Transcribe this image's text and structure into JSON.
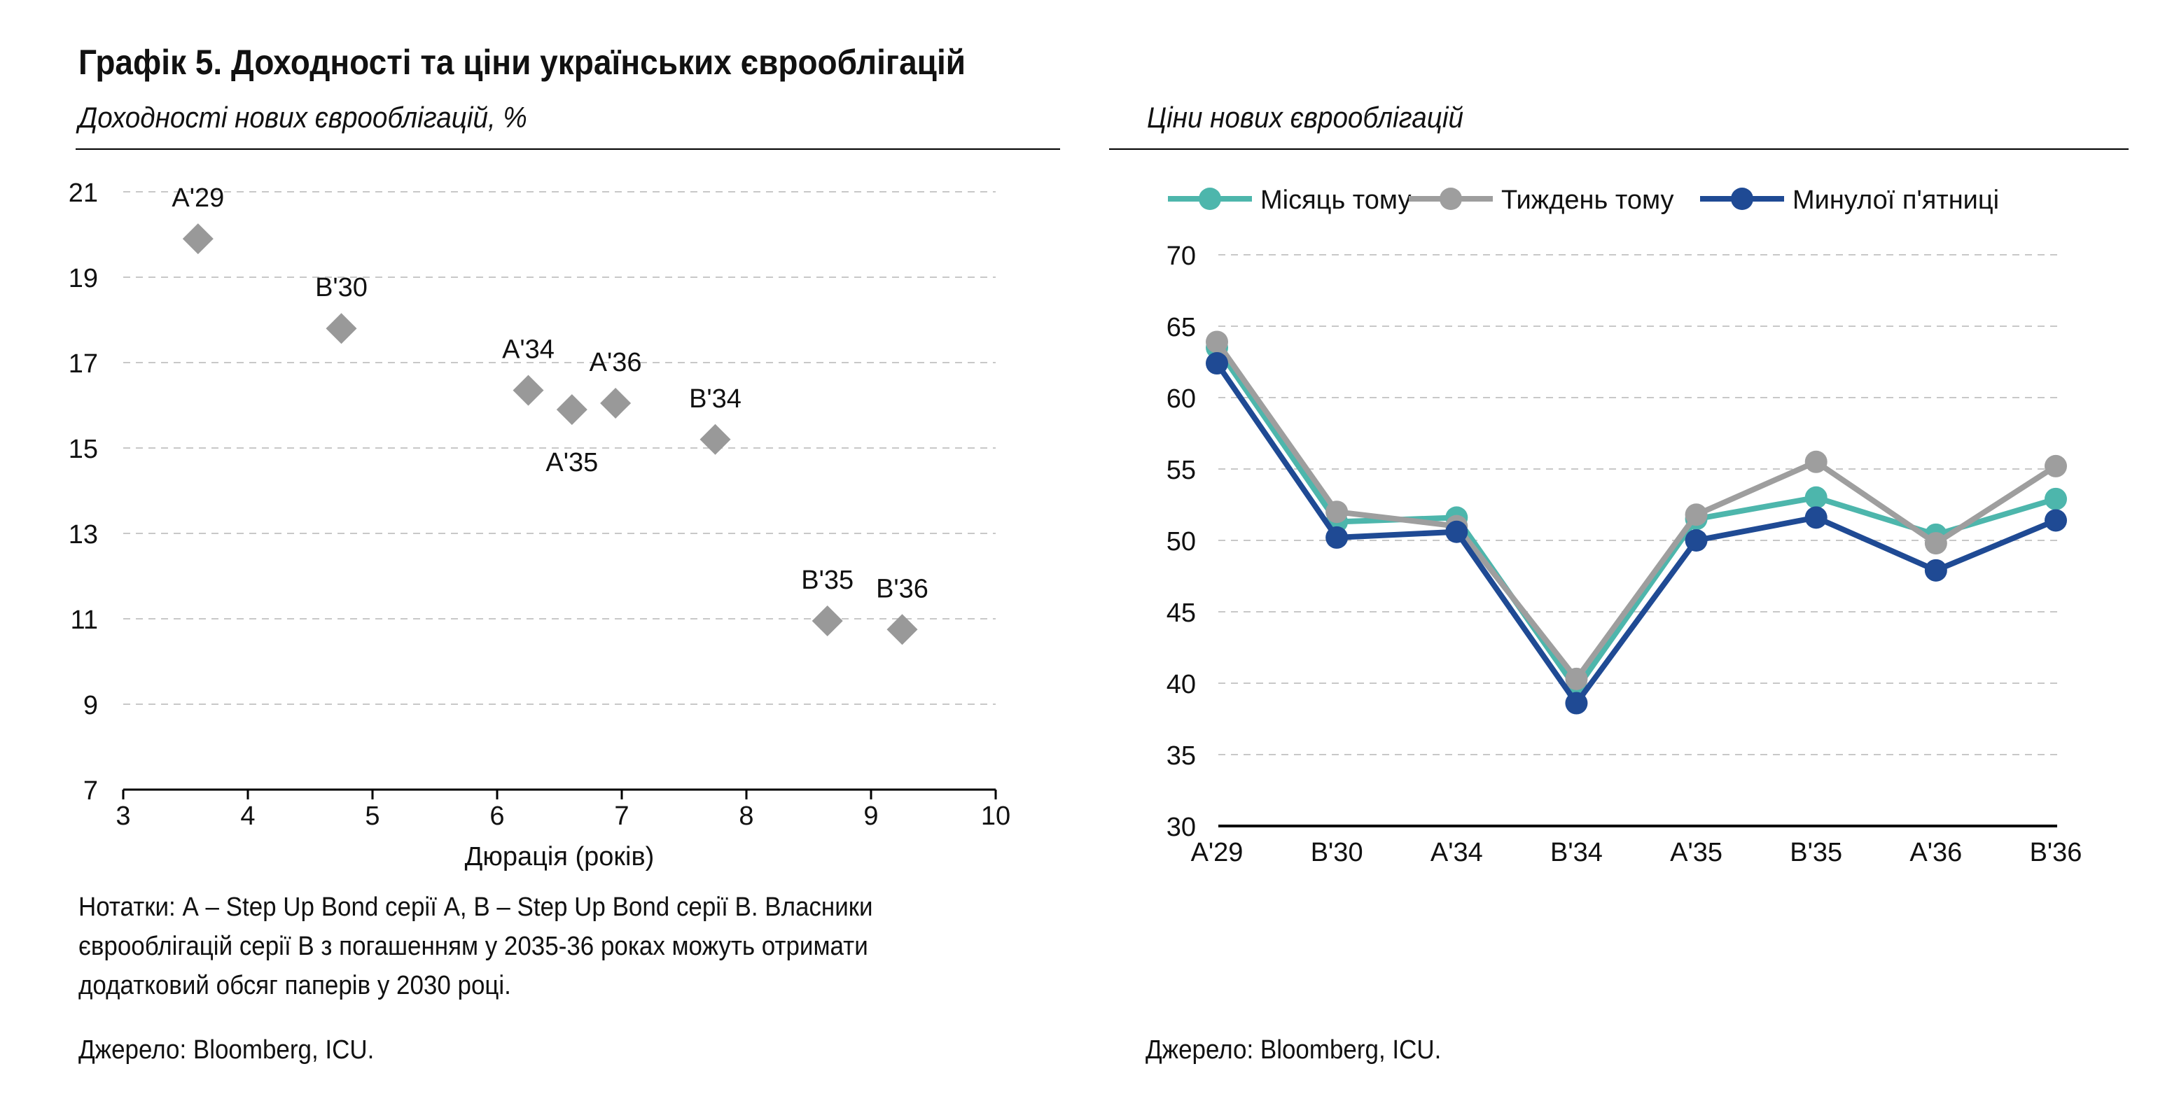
{
  "figure": {
    "title": "Графік 5. Доходності та ціни українських єврооблігацій",
    "left_subtitle": "Доходності нових єврооблігацій, %",
    "right_subtitle": "Ціни нових єврооблігацій",
    "notes": [
      "Нотатки: А – Step Up Bond серії A, В – Step Up Bond серії B. Власники",
      "єврооблігацій серії В з погашенням у 2035-36 роках можуть отримати",
      "додатковий обсяг паперів у 2030 році."
    ],
    "source_left": "Джерело: Bloomberg, ICU.",
    "source_right": "Джерело: Bloomberg, ICU."
  },
  "colors": {
    "marker": "#999999",
    "grid": "#c8c8c8",
    "axis": "#000000",
    "month_ago": "#4db6ac",
    "week_ago": "#9e9e9e",
    "last_friday": "#1f4a94"
  },
  "chart_data": [
    {
      "type": "scatter",
      "title": "Доходності нових єврооблігацій, %",
      "xlabel": "Дюрація (років)",
      "ylabel": "",
      "xlim": [
        3,
        10
      ],
      "ylim": [
        7,
        21
      ],
      "x_ticks": [
        3,
        4,
        5,
        6,
        7,
        8,
        9,
        10
      ],
      "y_ticks": [
        7,
        9,
        11,
        13,
        15,
        17,
        19,
        21
      ],
      "grid": true,
      "points": [
        {
          "label": "A'29",
          "x": 3.6,
          "y": 19.9,
          "label_pos": "above"
        },
        {
          "label": "B'30",
          "x": 4.75,
          "y": 17.8,
          "label_pos": "above"
        },
        {
          "label": "A'34",
          "x": 6.25,
          "y": 16.35,
          "label_pos": "above"
        },
        {
          "label": "A'35",
          "x": 6.6,
          "y": 15.9,
          "label_pos": "below"
        },
        {
          "label": "A'36",
          "x": 6.95,
          "y": 16.05,
          "label_pos": "above"
        },
        {
          "label": "B'34",
          "x": 7.75,
          "y": 15.2,
          "label_pos": "above"
        },
        {
          "label": "B'35",
          "x": 8.65,
          "y": 10.95,
          "label_pos": "above"
        },
        {
          "label": "B'36",
          "x": 9.25,
          "y": 10.75,
          "label_pos": "above"
        }
      ]
    },
    {
      "type": "line",
      "title": "Ціни нових єврооблігацій",
      "xlabel": "",
      "ylabel": "",
      "categories": [
        "A'29",
        "B'30",
        "A'34",
        "B'34",
        "A'35",
        "B'35",
        "A'36",
        "B'36"
      ],
      "ylim": [
        30,
        70
      ],
      "y_ticks": [
        30,
        35,
        40,
        45,
        50,
        55,
        60,
        65,
        70
      ],
      "grid": true,
      "legend": "top",
      "series": [
        {
          "name": "Місяць тому",
          "color_key": "month_ago",
          "values": [
            63.5,
            51.3,
            51.6,
            39.6,
            51.5,
            53.0,
            50.4,
            52.9
          ]
        },
        {
          "name": "Тиждень тому",
          "color_key": "week_ago",
          "values": [
            63.9,
            52.0,
            51.0,
            40.3,
            51.8,
            55.5,
            49.8,
            55.2
          ]
        },
        {
          "name": "Минулої п'ятниці",
          "color_key": "last_friday",
          "values": [
            62.4,
            50.2,
            50.6,
            38.6,
            50.0,
            51.6,
            47.9,
            51.4
          ]
        }
      ]
    }
  ]
}
